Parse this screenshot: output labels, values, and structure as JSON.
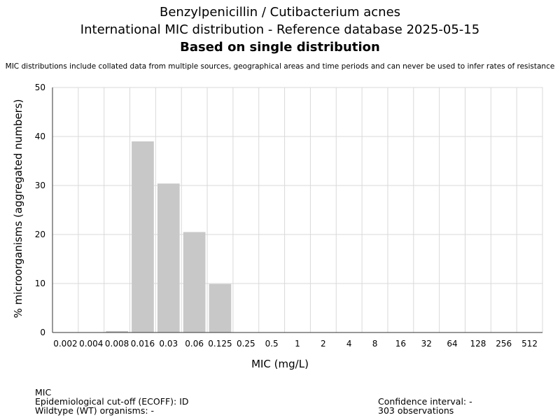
{
  "header": {
    "title_line1": "Benzylpenicillin / Cutibacterium acnes",
    "title_line2": "International MIC distribution - Reference database 2025-05-15",
    "title_line3": "Based on single distribution",
    "subtitle": "MIC distributions include collated data from multiple sources, geographical areas and time periods and can never be used to infer rates of resistance"
  },
  "chart_data": {
    "type": "bar",
    "xlabel": "MIC (mg/L)",
    "ylabel": "% microorganisms (aggregated numbers)",
    "categories": [
      "0.002",
      "0.004",
      "0.008",
      "0.016",
      "0.03",
      "0.06",
      "0.125",
      "0.25",
      "0.5",
      "1",
      "2",
      "4",
      "8",
      "16",
      "32",
      "64",
      "128",
      "256",
      "512"
    ],
    "values": [
      0,
      0,
      0.3,
      39.0,
      30.4,
      20.5,
      9.9,
      0,
      0,
      0,
      0,
      0,
      0,
      0,
      0,
      0,
      0,
      0,
      0
    ],
    "yticks": [
      0,
      10,
      20,
      30,
      40,
      50
    ],
    "ylim": [
      0,
      50
    ],
    "grid": true,
    "bar_color": "#c8c8c8"
  },
  "footer": {
    "mic_label": "MIC",
    "ecoff": "Epidemiological cut-off (ECOFF): ID",
    "wildtype": "Wildtype (WT) organisms:  -",
    "confidence": "Confidence interval: -",
    "observations": "303 observations"
  }
}
